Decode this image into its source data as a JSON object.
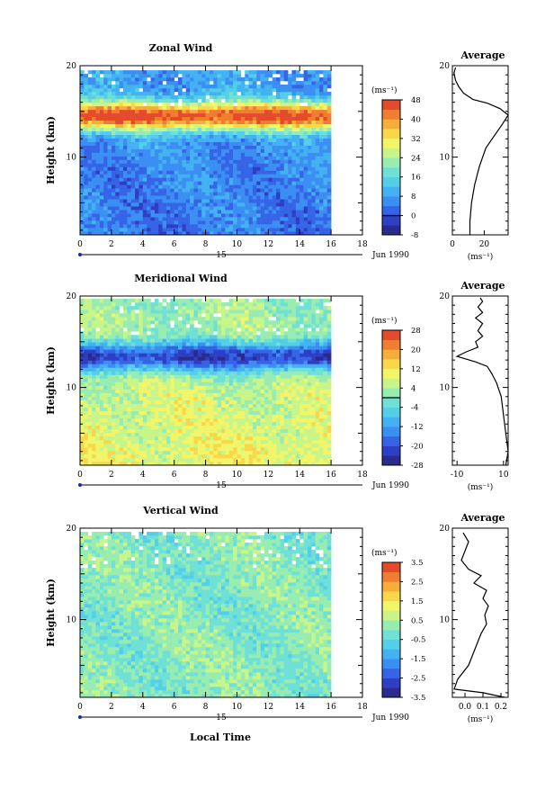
{
  "figure": {
    "xlabel_bottom": "Local Time",
    "date_label": "Jun 1990",
    "day_label": "15"
  },
  "chart_data": [
    {
      "type": "heatmap",
      "title": "Zonal Wind",
      "ylabel": "Height (km)",
      "xlabel": "",
      "xlim": [
        0,
        18
      ],
      "ylim": [
        1.5,
        20
      ],
      "x_ticks": [
        0,
        2,
        4,
        6,
        8,
        10,
        12,
        14,
        16,
        18
      ],
      "y_ticks": [
        10,
        20
      ],
      "colorbar": {
        "unit_label": "(ms⁻¹)",
        "levels": [
          -8,
          -4,
          0,
          4,
          8,
          12,
          16,
          20,
          24,
          28,
          32,
          36,
          40,
          44,
          48
        ],
        "tick_labels": [
          "48",
          "40",
          "32",
          "24",
          "16",
          "8",
          "0",
          "-8"
        ],
        "contour_level": "0"
      },
      "field": {
        "data_end_x": 16,
        "data_top_km": 19.5,
        "jet_height_km": 14.5,
        "jet_peak_ms": 46,
        "low_level_ms": 4,
        "upper_ms": 8
      },
      "average": {
        "title": "Average",
        "xlabel": "(ms⁻¹)",
        "x_ticks": [
          "0",
          "20"
        ],
        "xlim": [
          0,
          35
        ],
        "profile": [
          [
            11,
            1.5
          ],
          [
            11,
            3
          ],
          [
            12,
            5
          ],
          [
            14,
            7
          ],
          [
            17,
            9
          ],
          [
            21,
            11
          ],
          [
            27,
            12.5
          ],
          [
            31,
            13.5
          ],
          [
            35,
            14.6
          ],
          [
            30,
            15.3
          ],
          [
            22,
            15.9
          ],
          [
            13,
            16.3
          ],
          [
            7,
            17
          ],
          [
            4,
            17.7
          ],
          [
            2,
            18.4
          ],
          [
            1,
            19.2
          ],
          [
            2,
            19.8
          ]
        ]
      }
    },
    {
      "type": "heatmap",
      "title": "Meridional Wind",
      "ylabel": "Height (km)",
      "xlabel": "",
      "xlim": [
        0,
        18
      ],
      "ylim": [
        1.5,
        20
      ],
      "x_ticks": [
        0,
        2,
        4,
        6,
        8,
        10,
        12,
        14,
        16,
        18
      ],
      "y_ticks": [
        10,
        20
      ],
      "colorbar": {
        "unit_label": "(ms⁻¹)",
        "levels": [
          -28,
          -24,
          -20,
          -16,
          -12,
          -8,
          -4,
          0,
          4,
          8,
          12,
          16,
          20,
          24,
          28
        ],
        "tick_labels": [
          "28",
          "20",
          "12",
          "4",
          "-4",
          "-12",
          "-20",
          "-28"
        ],
        "contour_level": "0"
      },
      "field": {
        "data_end_x": 16,
        "data_top_km": 19.7,
        "jet_height_km": 13.4,
        "jet_peak_ms": -22,
        "low_level_ms": 10,
        "upper_ms": 2
      },
      "average": {
        "title": "Average",
        "xlabel": "(ms⁻¹)",
        "x_ticks": [
          "-10",
          "10"
        ],
        "xlim": [
          -12,
          12
        ],
        "profile": [
          [
            11,
            1.5
          ],
          [
            12,
            3
          ],
          [
            11,
            5
          ],
          [
            10,
            7
          ],
          [
            9,
            9
          ],
          [
            7,
            10.5
          ],
          [
            5,
            11.5
          ],
          [
            3,
            12.3
          ],
          [
            -2,
            12.8
          ],
          [
            -10,
            13.4
          ],
          [
            -6,
            13.9
          ],
          [
            -1,
            14.4
          ],
          [
            -2,
            15
          ],
          [
            1,
            15.6
          ],
          [
            -1,
            16.2
          ],
          [
            1,
            17
          ],
          [
            -2,
            17.6
          ],
          [
            1,
            18.2
          ],
          [
            -1,
            18.8
          ],
          [
            1,
            19.4
          ],
          [
            0,
            19.8
          ]
        ]
      }
    },
    {
      "type": "heatmap",
      "title": "Vertical Wind",
      "ylabel": "Height (km)",
      "xlabel": "Local Time",
      "xlim": [
        0,
        18
      ],
      "ylim": [
        1.5,
        20
      ],
      "x_ticks": [
        0,
        2,
        4,
        6,
        8,
        10,
        12,
        14,
        16,
        18
      ],
      "y_ticks": [
        10,
        20
      ],
      "colorbar": {
        "unit_label": "(ms⁻¹)",
        "levels": [
          -3.5,
          -3.0,
          -2.5,
          -2.0,
          -1.5,
          -1.0,
          -0.5,
          0,
          0.5,
          1.0,
          1.5,
          2.0,
          2.5,
          3.0,
          3.5
        ],
        "tick_labels": [
          "3.5",
          "2.5",
          "1.5",
          "0.5",
          "-0.5",
          "-1.5",
          "-2.5",
          "-3.5"
        ],
        "contour_level": ""
      },
      "field": {
        "data_end_x": 16,
        "data_top_km": 19.6,
        "jet_height_km": 0,
        "jet_peak_ms": 0,
        "low_level_ms": 0.1,
        "upper_ms": 0.05
      },
      "average": {
        "title": "Average",
        "xlabel": "(ms⁻¹)",
        "x_ticks": [
          "0.0",
          "0.1",
          "0.2"
        ],
        "xlim": [
          -0.07,
          0.24
        ],
        "profile": [
          [
            0.22,
            1.5
          ],
          [
            0.1,
            2.0
          ],
          [
            -0.06,
            2.4
          ],
          [
            -0.04,
            3.5
          ],
          [
            0.02,
            5
          ],
          [
            0.06,
            7
          ],
          [
            0.09,
            8.5
          ],
          [
            0.12,
            9.5
          ],
          [
            0.11,
            10.5
          ],
          [
            0.13,
            11.5
          ],
          [
            0.1,
            12.3
          ],
          [
            0.12,
            13.2
          ],
          [
            0.05,
            14
          ],
          [
            0.09,
            14.8
          ],
          [
            0.02,
            15.5
          ],
          [
            -0.02,
            16.5
          ],
          [
            0.0,
            17.5
          ],
          [
            0.02,
            18.5
          ],
          [
            -0.01,
            19.5
          ]
        ]
      }
    }
  ]
}
